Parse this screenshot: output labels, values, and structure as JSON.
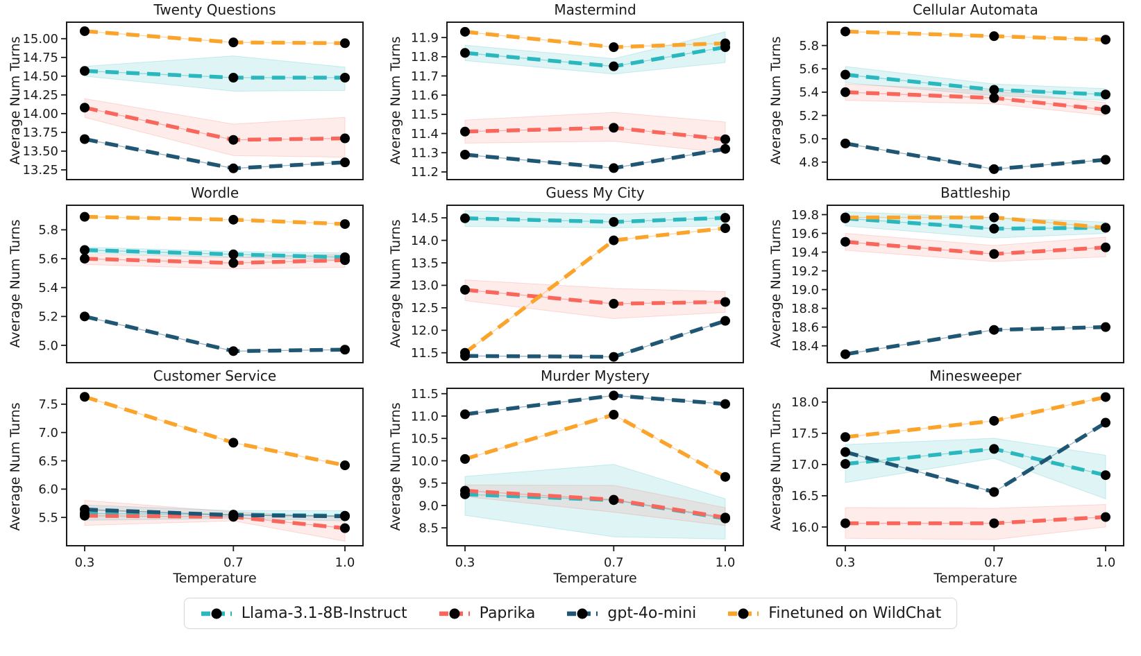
{
  "legend": {
    "position": "bottom-center",
    "items": [
      {
        "label": "Llama-3.1-8B-Instruct",
        "color": "#2ab7bd",
        "band_opacity": 0.15
      },
      {
        "label": "Paprika",
        "color": "#f8665c",
        "band_opacity": 0.12
      },
      {
        "label": "gpt-4o-mini",
        "color": "#1f5673",
        "band_opacity": 0
      },
      {
        "label": "Finetuned on WildChat",
        "color": "#fba42c",
        "band_opacity": 0
      }
    ],
    "marker_color": "#000000"
  },
  "chart_data": [
    {
      "type": "line",
      "title": "Twenty Questions",
      "ylabel": "Average Num Turns",
      "xlabel": "",
      "x": [
        0.3,
        0.7,
        1.0
      ],
      "show_xticks": false,
      "grid": false,
      "ylim": [
        13.12,
        15.22
      ],
      "yticks": [
        13.25,
        13.5,
        13.75,
        14.0,
        14.25,
        14.5,
        14.75,
        15.0
      ],
      "ytick_decimals": 2,
      "series": [
        {
          "name": "Llama-3.1-8B-Instruct",
          "values": [
            14.57,
            14.48,
            14.48
          ],
          "band_lo": [
            14.5,
            14.3,
            14.31
          ],
          "band_hi": [
            14.63,
            14.77,
            14.62
          ]
        },
        {
          "name": "Paprika",
          "values": [
            14.08,
            13.65,
            13.67
          ],
          "band_lo": [
            13.95,
            13.44,
            13.42
          ],
          "band_hi": [
            14.2,
            13.86,
            13.95
          ]
        },
        {
          "name": "gpt-4o-mini",
          "values": [
            13.66,
            13.27,
            13.35
          ]
        },
        {
          "name": "Finetuned on WildChat",
          "values": [
            15.1,
            14.95,
            14.94
          ]
        }
      ]
    },
    {
      "type": "line",
      "title": "Mastermind",
      "ylabel": "Average Num Turns",
      "xlabel": "",
      "x": [
        0.3,
        0.7,
        1.0
      ],
      "show_xticks": false,
      "grid": false,
      "ylim": [
        11.16,
        11.98
      ],
      "yticks": [
        11.2,
        11.3,
        11.4,
        11.5,
        11.6,
        11.7,
        11.8,
        11.9
      ],
      "ytick_decimals": 1,
      "series": [
        {
          "name": "Llama-3.1-8B-Instruct",
          "values": [
            11.82,
            11.75,
            11.85
          ],
          "band_lo": [
            11.78,
            11.71,
            11.77
          ],
          "band_hi": [
            11.86,
            11.79,
            11.93
          ]
        },
        {
          "name": "Paprika",
          "values": [
            11.41,
            11.43,
            11.37
          ],
          "band_lo": [
            11.35,
            11.36,
            11.3
          ],
          "band_hi": [
            11.47,
            11.51,
            11.46
          ]
        },
        {
          "name": "gpt-4o-mini",
          "values": [
            11.29,
            11.22,
            11.32
          ]
        },
        {
          "name": "Finetuned on WildChat",
          "values": [
            11.93,
            11.85,
            11.87
          ]
        }
      ]
    },
    {
      "type": "line",
      "title": "Cellular Automata",
      "ylabel": "Average Num Turns",
      "xlabel": "",
      "x": [
        0.3,
        0.7,
        1.0
      ],
      "show_xticks": false,
      "grid": false,
      "ylim": [
        4.65,
        6.0
      ],
      "yticks": [
        4.8,
        5.0,
        5.2,
        5.4,
        5.6,
        5.8
      ],
      "ytick_decimals": 1,
      "series": [
        {
          "name": "Llama-3.1-8B-Instruct",
          "values": [
            5.55,
            5.42,
            5.38
          ],
          "band_lo": [
            5.48,
            5.37,
            5.33
          ],
          "band_hi": [
            5.62,
            5.47,
            5.43
          ]
        },
        {
          "name": "Paprika",
          "values": [
            5.4,
            5.35,
            5.25
          ],
          "band_lo": [
            5.33,
            5.3,
            5.2
          ],
          "band_hi": [
            5.47,
            5.41,
            5.31
          ]
        },
        {
          "name": "gpt-4o-mini",
          "values": [
            4.96,
            4.74,
            4.82
          ]
        },
        {
          "name": "Finetuned on WildChat",
          "values": [
            5.92,
            5.88,
            5.85
          ]
        }
      ]
    },
    {
      "type": "line",
      "title": "Wordle",
      "ylabel": "Average Num Turns",
      "xlabel": "",
      "x": [
        0.3,
        0.7,
        1.0
      ],
      "show_xticks": false,
      "grid": false,
      "ylim": [
        4.88,
        5.97
      ],
      "yticks": [
        5.0,
        5.2,
        5.4,
        5.6,
        5.8
      ],
      "ytick_decimals": 1,
      "series": [
        {
          "name": "Llama-3.1-8B-Instruct",
          "values": [
            5.66,
            5.63,
            5.61
          ],
          "band_lo": [
            5.64,
            5.61,
            5.59
          ],
          "band_hi": [
            5.68,
            5.65,
            5.64
          ]
        },
        {
          "name": "Paprika",
          "values": [
            5.6,
            5.57,
            5.59
          ],
          "band_lo": [
            5.56,
            5.53,
            5.54
          ],
          "band_hi": [
            5.63,
            5.61,
            5.63
          ]
        },
        {
          "name": "gpt-4o-mini",
          "values": [
            5.2,
            4.96,
            4.97
          ]
        },
        {
          "name": "Finetuned on WildChat",
          "values": [
            5.89,
            5.87,
            5.84
          ]
        }
      ]
    },
    {
      "type": "line",
      "title": "Guess My City",
      "ylabel": "Average Num Turns",
      "xlabel": "",
      "x": [
        0.3,
        0.7,
        1.0
      ],
      "show_xticks": false,
      "grid": false,
      "ylim": [
        11.28,
        14.78
      ],
      "yticks": [
        11.5,
        12.0,
        12.5,
        13.0,
        13.5,
        14.0,
        14.5
      ],
      "ytick_decimals": 1,
      "series": [
        {
          "name": "Llama-3.1-8B-Instruct",
          "values": [
            14.49,
            14.41,
            14.5
          ],
          "band_lo": [
            14.31,
            14.28,
            14.32
          ],
          "band_hi": [
            14.66,
            14.58,
            14.66
          ]
        },
        {
          "name": "Paprika",
          "values": [
            12.9,
            12.59,
            12.63
          ],
          "band_lo": [
            12.66,
            12.26,
            12.4
          ],
          "band_hi": [
            13.12,
            12.93,
            12.86
          ]
        },
        {
          "name": "gpt-4o-mini",
          "values": [
            11.43,
            11.41,
            12.21
          ]
        },
        {
          "name": "Finetuned on WildChat",
          "values": [
            11.5,
            14.0,
            14.27
          ]
        }
      ]
    },
    {
      "type": "line",
      "title": "Battleship",
      "ylabel": "Average Num Turns",
      "xlabel": "",
      "x": [
        0.3,
        0.7,
        1.0
      ],
      "show_xticks": false,
      "grid": false,
      "ylim": [
        18.22,
        19.9
      ],
      "yticks": [
        18.4,
        18.6,
        18.8,
        19.0,
        19.2,
        19.4,
        19.6,
        19.8
      ],
      "ytick_decimals": 1,
      "series": [
        {
          "name": "Llama-3.1-8B-Instruct",
          "values": [
            19.76,
            19.65,
            19.66
          ],
          "band_lo": [
            19.68,
            19.55,
            19.6
          ],
          "band_hi": [
            19.83,
            19.77,
            19.72
          ]
        },
        {
          "name": "Paprika",
          "values": [
            19.51,
            19.38,
            19.45
          ],
          "band_lo": [
            19.42,
            19.3,
            19.35
          ],
          "band_hi": [
            19.6,
            19.47,
            19.56
          ]
        },
        {
          "name": "gpt-4o-mini",
          "values": [
            18.31,
            18.57,
            18.6
          ]
        },
        {
          "name": "Finetuned on WildChat",
          "values": [
            19.77,
            19.77,
            19.66
          ]
        }
      ]
    },
    {
      "type": "line",
      "title": "Customer Service",
      "ylabel": "Average Num Turns",
      "xlabel": "Temperature",
      "x": [
        0.3,
        0.7,
        1.0
      ],
      "show_xticks": true,
      "grid": false,
      "ylim": [
        5.0,
        7.78
      ],
      "yticks": [
        5.5,
        6.0,
        6.5,
        7.0,
        7.5
      ],
      "ytick_decimals": 1,
      "series": [
        {
          "name": "Llama-3.1-8B-Instruct",
          "values": [
            5.57,
            5.55,
            5.53
          ],
          "band_lo": [
            5.45,
            5.48,
            5.44
          ],
          "band_hi": [
            5.72,
            5.62,
            5.62
          ]
        },
        {
          "name": "Paprika",
          "values": [
            5.53,
            5.51,
            5.31
          ],
          "band_lo": [
            5.36,
            5.44,
            5.08
          ],
          "band_hi": [
            5.8,
            5.6,
            5.5
          ]
        },
        {
          "name": "gpt-4o-mini",
          "values": [
            5.64,
            5.54,
            5.52
          ]
        },
        {
          "name": "Finetuned on WildChat",
          "values": [
            7.63,
            6.82,
            6.42
          ]
        }
      ]
    },
    {
      "type": "line",
      "title": "Murder Mystery",
      "ylabel": "Average Num Turns",
      "xlabel": "Temperature",
      "x": [
        0.3,
        0.7,
        1.0
      ],
      "show_xticks": true,
      "grid": false,
      "ylim": [
        8.1,
        11.62
      ],
      "yticks": [
        8.5,
        9.0,
        9.5,
        10.0,
        10.5,
        11.0,
        11.5
      ],
      "ytick_decimals": 1,
      "series": [
        {
          "name": "Llama-3.1-8B-Instruct",
          "values": [
            9.25,
            9.12,
            8.71
          ],
          "band_lo": [
            8.78,
            8.3,
            8.25
          ],
          "band_hi": [
            9.65,
            9.92,
            9.15
          ]
        },
        {
          "name": "Paprika",
          "values": [
            9.33,
            9.13,
            8.73
          ],
          "band_lo": [
            9.2,
            8.85,
            8.55
          ],
          "band_hi": [
            9.46,
            9.45,
            8.95
          ]
        },
        {
          "name": "gpt-4o-mini",
          "values": [
            11.04,
            11.46,
            11.27
          ]
        },
        {
          "name": "Finetuned on WildChat",
          "values": [
            10.04,
            11.03,
            9.64
          ]
        }
      ]
    },
    {
      "type": "line",
      "title": "Minesweeper",
      "ylabel": "Average Num Turns",
      "xlabel": "Temperature",
      "x": [
        0.3,
        0.7,
        1.0
      ],
      "show_xticks": true,
      "grid": false,
      "ylim": [
        15.7,
        18.22
      ],
      "yticks": [
        16.0,
        16.5,
        17.0,
        17.5,
        18.0
      ],
      "ytick_decimals": 1,
      "series": [
        {
          "name": "Llama-3.1-8B-Instruct",
          "values": [
            17.01,
            17.25,
            16.83
          ],
          "band_lo": [
            16.71,
            17.1,
            16.45
          ],
          "band_hi": [
            17.32,
            17.42,
            17.15
          ]
        },
        {
          "name": "Paprika",
          "values": [
            16.06,
            16.06,
            16.16
          ],
          "band_lo": [
            15.82,
            15.8,
            16.0
          ],
          "band_hi": [
            16.31,
            16.3,
            16.36
          ]
        },
        {
          "name": "gpt-4o-mini",
          "values": [
            17.2,
            16.56,
            17.67
          ]
        },
        {
          "name": "Finetuned on WildChat",
          "values": [
            17.44,
            17.7,
            18.08
          ]
        }
      ]
    }
  ]
}
